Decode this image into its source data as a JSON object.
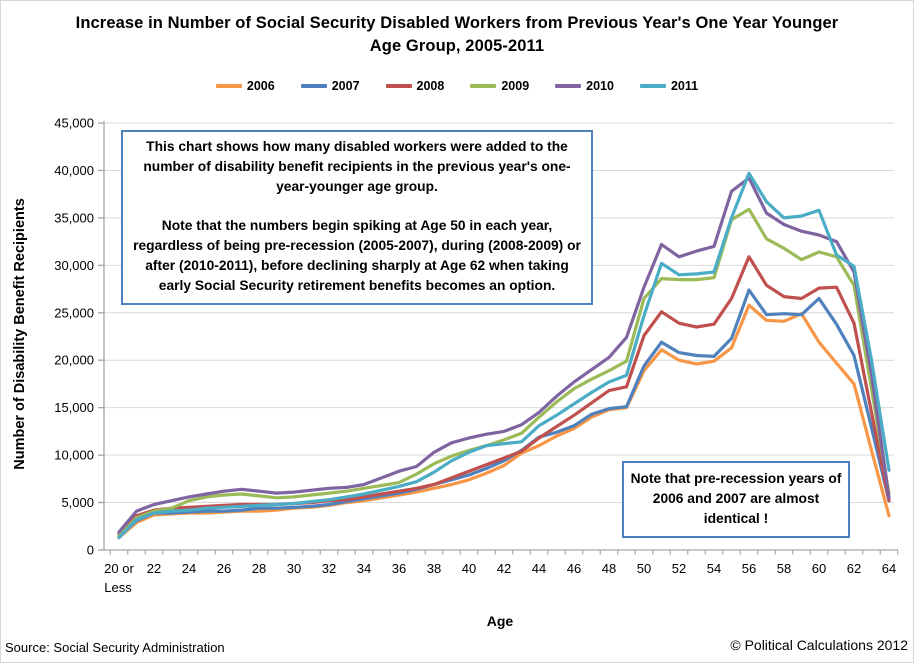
{
  "annotations": {
    "box1": [
      "This chart shows how many disabled workers were added to the number of disability benefit recipients in the previous year's one-year-younger age group.",
      "Note that the numbers begin spiking at Age 50 in each year, regardless of being pre-recession (2005-2007), during (2008-2009) or after (2010-2011), before declining sharply at Age 62 when taking early Social Security retirement benefits becomes an option."
    ],
    "box2": "Note that pre-recession years of 2006 and 2007 are almost identical !"
  },
  "footer": {
    "source": "Source: Social Security Administration",
    "copyright": "© Political Calculations 2012"
  },
  "chart_data": {
    "type": "line",
    "title": "Increase in Number of Social Security Disabled Workers from Previous Year's One Year Younger Age Group, 2005-2011",
    "xlabel": "Age",
    "ylabel": "Number of Disability Benefit Recipients",
    "ylim": [
      0,
      45000
    ],
    "y_tick_step": 5000,
    "y_tick_labels": [
      "0",
      "5,000",
      "10,000",
      "15,000",
      "20,000",
      "25,000",
      "30,000",
      "35,000",
      "40,000",
      "45,000"
    ],
    "x_tick_labels": [
      "20 or Less",
      "22",
      "24",
      "26",
      "28",
      "30",
      "32",
      "34",
      "36",
      "38",
      "40",
      "42",
      "44",
      "46",
      "48",
      "50",
      "52",
      "54",
      "56",
      "58",
      "60",
      "62",
      "64"
    ],
    "categories": [
      "20 or Less",
      "21",
      "22",
      "23",
      "24",
      "25",
      "26",
      "27",
      "28",
      "29",
      "30",
      "31",
      "32",
      "33",
      "34",
      "35",
      "36",
      "37",
      "38",
      "39",
      "40",
      "41",
      "42",
      "43",
      "44",
      "45",
      "46",
      "47",
      "48",
      "49",
      "50",
      "51",
      "52",
      "53",
      "54",
      "55",
      "56",
      "57",
      "58",
      "59",
      "60",
      "61",
      "62",
      "63",
      "64"
    ],
    "grid": "horizontal",
    "legend_position": "top",
    "gridline_color": "#d9d9d9",
    "axis_color": "#a6a6a6",
    "annotation_border_color": "#4f81bd",
    "series": [
      {
        "name": "2006",
        "color": "#F79646",
        "values": [
          1300,
          2900,
          3700,
          3800,
          3900,
          3900,
          4000,
          4100,
          4100,
          4200,
          4400,
          4500,
          4700,
          5000,
          5200,
          5500,
          5800,
          6100,
          6500,
          6900,
          7400,
          8100,
          8900,
          10200,
          11000,
          12000,
          12800,
          14000,
          14800,
          15000,
          18900,
          21100,
          20000,
          19600,
          19900,
          21300,
          25800,
          24200,
          24100,
          24900,
          21900,
          19700,
          17500,
          10500,
          3600
        ]
      },
      {
        "name": "2007",
        "color": "#4F81BD",
        "values": [
          1400,
          3100,
          3900,
          3900,
          4000,
          4100,
          4100,
          4200,
          4400,
          4400,
          4500,
          4600,
          4800,
          5100,
          5400,
          5700,
          6000,
          6400,
          6900,
          7400,
          7900,
          8600,
          9400,
          10500,
          11900,
          12400,
          13100,
          14300,
          14900,
          15100,
          19400,
          21900,
          20800,
          20500,
          20400,
          22300,
          27400,
          24800,
          24900,
          24800,
          26500,
          23800,
          20500,
          12900,
          5200
        ]
      },
      {
        "name": "2008",
        "color": "#C0504D",
        "values": [
          1700,
          3600,
          4200,
          4400,
          4500,
          4600,
          4700,
          4800,
          4800,
          4800,
          4900,
          5000,
          5200,
          5300,
          5600,
          5900,
          6200,
          6500,
          6900,
          7600,
          8300,
          9000,
          9700,
          10400,
          11800,
          13000,
          14200,
          15500,
          16800,
          17200,
          22600,
          25100,
          23900,
          23500,
          23800,
          26500,
          30900,
          27900,
          26700,
          26500,
          27600,
          27700,
          23900,
          14500,
          5200
        ]
      },
      {
        "name": "2009",
        "color": "#9BBB59",
        "values": [
          1500,
          3400,
          4100,
          4400,
          5200,
          5600,
          5800,
          5900,
          5700,
          5500,
          5600,
          5800,
          6000,
          6200,
          6500,
          6800,
          7100,
          8000,
          9100,
          9900,
          10500,
          11000,
          11600,
          12300,
          14000,
          15600,
          17000,
          18000,
          18900,
          19900,
          26500,
          28600,
          28500,
          28500,
          28700,
          34800,
          35900,
          32800,
          31800,
          30600,
          31400,
          30900,
          27900,
          17000,
          5900
        ]
      },
      {
        "name": "2010",
        "color": "#8064A2",
        "values": [
          1900,
          4100,
          4800,
          5200,
          5600,
          5900,
          6200,
          6400,
          6200,
          6000,
          6100,
          6300,
          6500,
          6600,
          6900,
          7600,
          8300,
          8800,
          10300,
          11300,
          11800,
          12200,
          12500,
          13200,
          14500,
          16200,
          17700,
          19000,
          20300,
          22400,
          27700,
          32200,
          30900,
          31500,
          32000,
          37800,
          39200,
          35500,
          34300,
          33600,
          33200,
          32500,
          29300,
          18500,
          5500
        ]
      },
      {
        "name": "2011",
        "color": "#4BACC6",
        "values": [
          1300,
          3200,
          3900,
          4100,
          4200,
          4400,
          4500,
          4600,
          4700,
          4800,
          4900,
          5100,
          5300,
          5600,
          5900,
          6300,
          6700,
          7200,
          8200,
          9400,
          10300,
          11000,
          11200,
          11400,
          13100,
          14200,
          15400,
          16600,
          17700,
          18400,
          24700,
          30200,
          29000,
          29100,
          29300,
          35000,
          39700,
          36700,
          35000,
          35200,
          35800,
          31100,
          29900,
          20000,
          8400
        ]
      }
    ]
  }
}
